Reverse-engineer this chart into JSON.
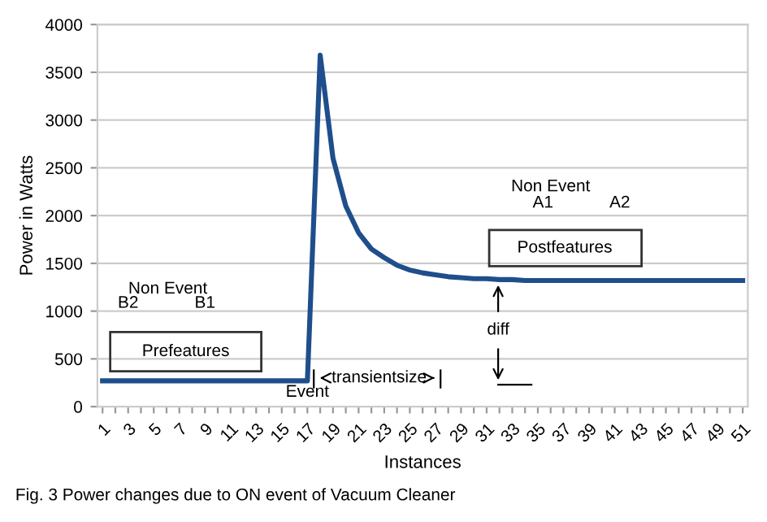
{
  "chart_data": {
    "type": "line",
    "xlabel": "Instances",
    "ylabel": "Power in Watts",
    "categories": [
      "1",
      null,
      "3",
      null,
      "5",
      null,
      "7",
      null,
      "9",
      null,
      "11",
      null,
      "13",
      null,
      "15",
      null,
      "17",
      null,
      "19",
      null,
      "21",
      null,
      "23",
      null,
      "25",
      null,
      "27",
      null,
      "29",
      null,
      "31",
      null,
      "33",
      null,
      "35",
      null,
      "37",
      null,
      "39",
      null,
      "41",
      null,
      "43",
      null,
      "45",
      null,
      "47",
      null,
      "49",
      null,
      "51"
    ],
    "series": [
      {
        "color": "#1f4e8c",
        "values": [
          270,
          270,
          270,
          270,
          270,
          270,
          270,
          270,
          270,
          270,
          270,
          270,
          270,
          270,
          270,
          270,
          270,
          3680,
          2600,
          2100,
          1820,
          1650,
          1560,
          1480,
          1430,
          1400,
          1380,
          1360,
          1350,
          1340,
          1340,
          1330,
          1330,
          1320,
          1320,
          1320,
          1320,
          1320,
          1320,
          1320,
          1320,
          1320,
          1320,
          1320,
          1320,
          1320,
          1320,
          1320,
          1320,
          1320,
          1320
        ]
      }
    ],
    "ylim": [
      0,
      4000
    ],
    "yticks": [
      0,
      500,
      1000,
      1500,
      2000,
      2500,
      3000,
      3500,
      4000
    ],
    "grid": "y",
    "marker": "none",
    "line_style": "solid",
    "legend": false,
    "annotations": [
      "Non Event",
      "B2",
      "B1",
      "Prefeatures",
      "Event",
      "transientsize",
      "Non Event",
      "A1",
      "A2",
      "Postfeatures",
      "diff",
      "Fig. 3 Power changes due to ON event of Vacuum Cleaner"
    ]
  }
}
